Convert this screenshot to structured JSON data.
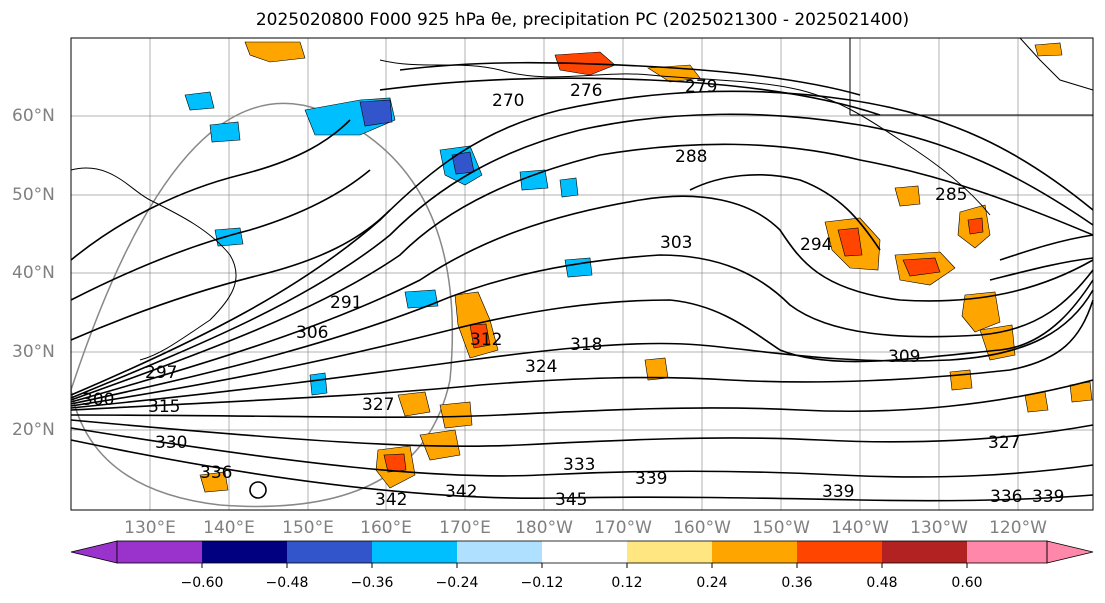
{
  "title": "2025020800 F000 925 hPa θe, precipitation PC (2025021300 - 2025021400)",
  "latitude_labels": [
    "60°N",
    "50°N",
    "40°N",
    "30°N",
    "20°N"
  ],
  "longitude_labels": [
    "130°E",
    "140°E",
    "150°E",
    "160°E",
    "170°E",
    "180°W",
    "170°W",
    "160°W",
    "150°W",
    "140°W",
    "130°W",
    "120°W"
  ],
  "contour_labels": [
    "270",
    "276",
    "279",
    "288",
    "285",
    "303",
    "294",
    "291",
    "306",
    "297",
    "300",
    "315",
    "312",
    "318",
    "324",
    "327",
    "309",
    "330",
    "333",
    "339",
    "345",
    "342",
    "339",
    "336",
    "339",
    "327",
    "342",
    "336"
  ],
  "colorbar": {
    "levels": [
      "−0.60",
      "−0.48",
      "−0.36",
      "−0.24",
      "−0.12",
      "0.12",
      "0.24",
      "0.36",
      "0.48",
      "0.60"
    ],
    "colors": [
      "#9933cc",
      "#000080",
      "#3355cc",
      "#00bfff",
      "#b0e0ff",
      "#ffffff",
      "#ffe680",
      "#ffa500",
      "#ff4500",
      "#b22222",
      "#ff88aa"
    ]
  },
  "map_colors": {
    "contour": "#000000",
    "grid": "#808080",
    "coast": "#000000",
    "positive_1": "#ffe680",
    "positive_2": "#ffa500",
    "positive_3": "#ff4500",
    "negative_1": "#00bfff",
    "negative_2": "#3355cc"
  }
}
